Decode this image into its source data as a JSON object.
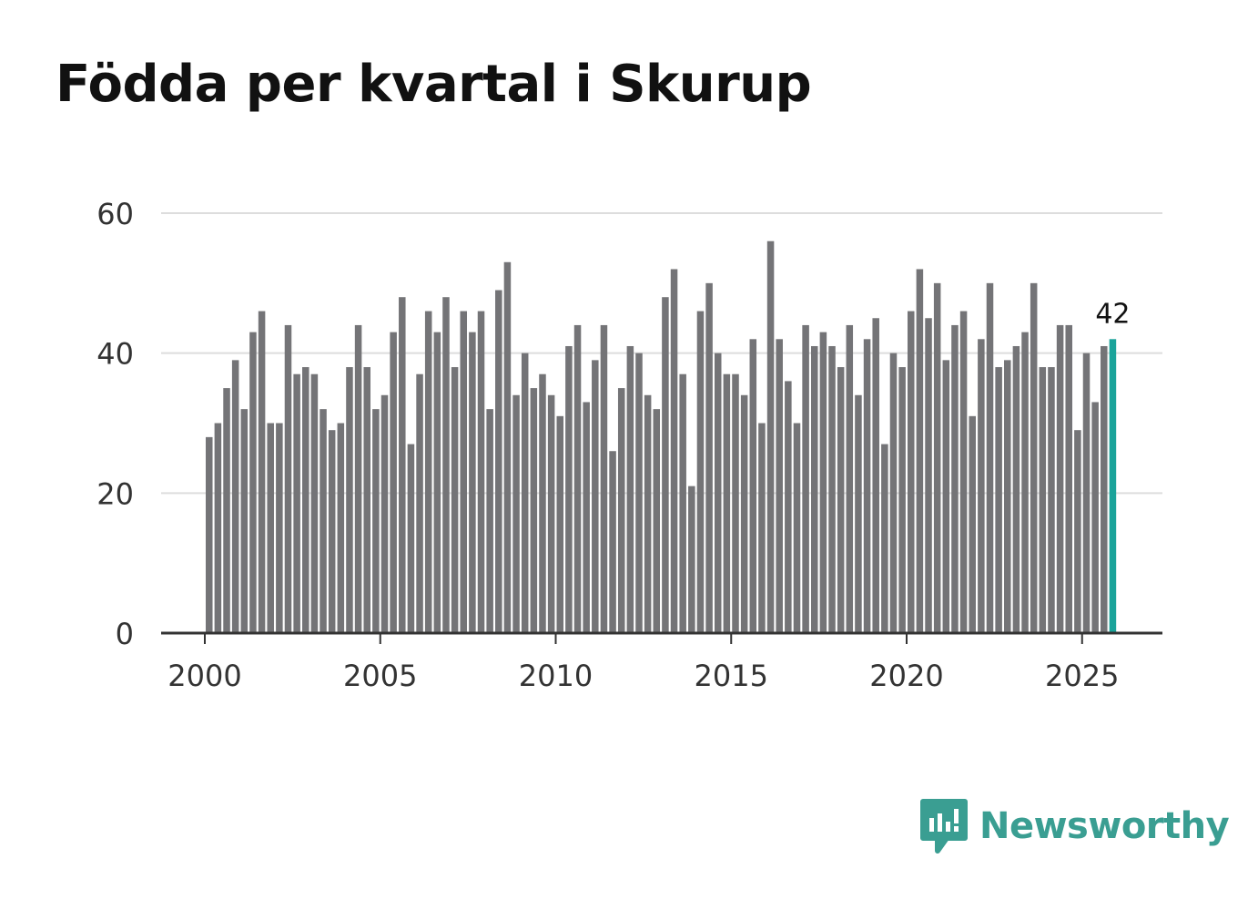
{
  "colors": {
    "bar": "#747477",
    "highlight": "#1aa39a",
    "grid": "#dddddd",
    "axis": "#333333",
    "title": "#111111",
    "brand": "#3a9e92"
  },
  "brand": {
    "name": "Newsworthy",
    "icon": "newsworthy-logo-icon"
  },
  "chart_data": {
    "type": "bar",
    "title": "Födda per kvartal i Skurup",
    "xlabel": "",
    "ylabel": "",
    "ylim": [
      0,
      60
    ],
    "xlim": [
      1999.75,
      2027.1
    ],
    "yticks": [
      0,
      20,
      40,
      60
    ],
    "xticks": [
      2000,
      2005,
      2010,
      2015,
      2020,
      2025
    ],
    "ytick_labels": [
      "0",
      "20",
      "40",
      "60"
    ],
    "xtick_labels": [
      "2000",
      "2005",
      "2010",
      "2015",
      "2020",
      "2025"
    ],
    "start": "2000 Q1",
    "interval": "quarter",
    "values": [
      28,
      30,
      35,
      39,
      32,
      43,
      46,
      30,
      30,
      44,
      37,
      38,
      37,
      32,
      29,
      30,
      38,
      44,
      38,
      32,
      34,
      43,
      48,
      27,
      37,
      46,
      43,
      48,
      38,
      46,
      43,
      46,
      32,
      49,
      53,
      34,
      40,
      35,
      37,
      34,
      31,
      41,
      44,
      33,
      39,
      44,
      26,
      35,
      41,
      40,
      34,
      32,
      48,
      52,
      37,
      21,
      46,
      50,
      40,
      37,
      37,
      34,
      42,
      30,
      56,
      42,
      36,
      30,
      44,
      41,
      43,
      41,
      38,
      44,
      34,
      42,
      45,
      27,
      40,
      38,
      46,
      52,
      45,
      50,
      39,
      44,
      46,
      31,
      42,
      50,
      38,
      39,
      41,
      43,
      50,
      38,
      38,
      44,
      44,
      29,
      40,
      33,
      41,
      42
    ],
    "highlight_index": 103,
    "annotation": "42",
    "grid": true
  }
}
